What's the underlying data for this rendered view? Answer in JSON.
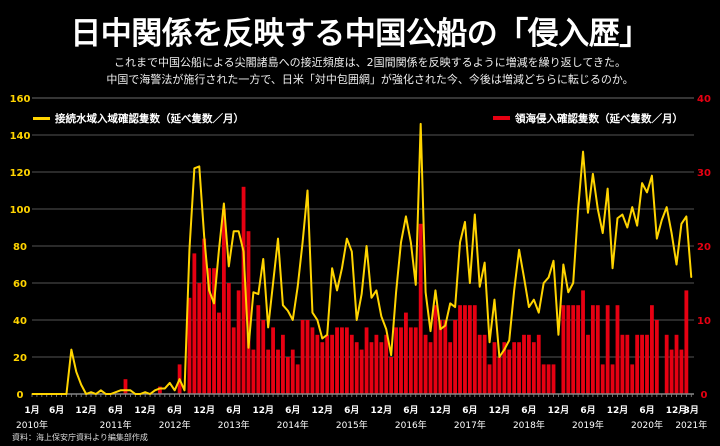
{
  "title": "日中関係を反映する中国公船の「侵入歴」",
  "subtitle_lines": [
    "これまで中国公船による尖閣諸島への接近頻度は、2国間関係を反映するように増減を繰り返してきた。",
    "中国で海警法が施行された一方で、日米「対中包囲網」が強化された今、今後は増減どちらに転じるのか。"
  ],
  "source": "資料：海上保安庁資料より編集部作成",
  "chart_data": {
    "type": "bar+line",
    "start_month": "2010-01",
    "end_month": "2021-03",
    "grid": true,
    "left_axis": {
      "ylim": [
        0,
        160
      ],
      "ticks": [
        0,
        20,
        40,
        60,
        80,
        100,
        120,
        140,
        160
      ],
      "color": "#FFD400"
    },
    "right_axis": {
      "ylim": [
        0,
        40
      ],
      "ticks": [
        0,
        10,
        20,
        30,
        40
      ],
      "color": "#E60012"
    },
    "x_tick_labels": [
      {
        "month": 0,
        "label": "1月",
        "year": "2010年"
      },
      {
        "month": 5,
        "label": "6月"
      },
      {
        "month": 11,
        "label": "12月"
      },
      {
        "month": 17,
        "label": "6月",
        "year": "2011年"
      },
      {
        "month": 23,
        "label": "12月"
      },
      {
        "month": 29,
        "label": "6月",
        "year": "2012年"
      },
      {
        "month": 35,
        "label": "12月"
      },
      {
        "month": 41,
        "label": "6月",
        "year": "2013年"
      },
      {
        "month": 47,
        "label": "12月"
      },
      {
        "month": 53,
        "label": "6月",
        "year": "2014年"
      },
      {
        "month": 59,
        "label": "12月"
      },
      {
        "month": 65,
        "label": "6月",
        "year": "2015年"
      },
      {
        "month": 71,
        "label": "12月"
      },
      {
        "month": 77,
        "label": "6月",
        "year": "2016年"
      },
      {
        "month": 83,
        "label": "12月"
      },
      {
        "month": 89,
        "label": "6月",
        "year": "2017年"
      },
      {
        "month": 95,
        "label": "12月"
      },
      {
        "month": 101,
        "label": "6月",
        "year": "2018年"
      },
      {
        "month": 107,
        "label": "12月"
      },
      {
        "month": 113,
        "label": "6月",
        "year": "2019年"
      },
      {
        "month": 119,
        "label": "12月"
      },
      {
        "month": 125,
        "label": "6月",
        "year": "2020年"
      },
      {
        "month": 131,
        "label": "12月"
      },
      {
        "month": 134,
        "label": "3月",
        "year": "2021年"
      }
    ],
    "series": [
      {
        "name": "接続水域入域確認隻数（延べ隻数／月）",
        "type": "line",
        "axis": "left",
        "color": "#FFD400",
        "values": [
          0,
          0,
          0,
          0,
          0,
          0,
          0,
          0,
          24,
          12,
          5,
          0,
          1,
          0,
          2,
          0,
          0,
          1,
          2,
          2,
          2,
          0,
          0,
          1,
          0,
          2,
          3,
          3,
          6,
          2,
          8,
          2,
          78,
          122,
          123,
          85,
          56,
          49,
          78,
          103,
          69,
          88,
          88,
          77,
          25,
          55,
          54,
          73,
          36,
          60,
          84,
          48,
          45,
          40,
          58,
          82,
          110,
          44,
          40,
          30,
          32,
          68,
          56,
          68,
          84,
          77,
          40,
          54,
          80,
          52,
          56,
          42,
          35,
          21,
          55,
          82,
          96,
          82,
          59,
          146,
          55,
          34,
          56,
          35,
          37,
          49,
          47,
          82,
          93,
          60,
          97,
          58,
          71,
          28,
          51,
          20,
          24,
          29,
          56,
          78,
          63,
          47,
          51,
          44,
          60,
          63,
          72,
          32,
          70,
          55,
          60,
          100,
          131,
          98,
          119,
          100,
          87,
          111,
          68,
          95,
          97,
          90,
          101,
          91,
          114,
          109,
          118,
          84,
          94,
          101,
          87,
          70,
          92,
          96,
          63
        ]
      },
      {
        "name": "領海侵入確認隻数（延べ隻数／月）",
        "type": "bar",
        "axis": "right",
        "color": "#E60012",
        "values": [
          0,
          0,
          0,
          0,
          0,
          0,
          0,
          0,
          0,
          0,
          0,
          0,
          0,
          0,
          0,
          0,
          0,
          0,
          0,
          2,
          0,
          0,
          0,
          0,
          0,
          0,
          1,
          0,
          0,
          0,
          4,
          0,
          13,
          19,
          15,
          21,
          17,
          17,
          11,
          25,
          15,
          9,
          14,
          28,
          22,
          6,
          12,
          10,
          6,
          9,
          6,
          8,
          5,
          6,
          4,
          10,
          10,
          9,
          8,
          7,
          8,
          8,
          9,
          9,
          9,
          8,
          7,
          6,
          9,
          7,
          8,
          7,
          8,
          5,
          9,
          9,
          11,
          9,
          9,
          23,
          8,
          7,
          12,
          10,
          10,
          7,
          10,
          12,
          12,
          12,
          12,
          8,
          8,
          4,
          7,
          5,
          7,
          6,
          7,
          7,
          8,
          8,
          7,
          8,
          4,
          4,
          4,
          0,
          12,
          12,
          12,
          12,
          14,
          8,
          12,
          12,
          4,
          12,
          4,
          12,
          8,
          8,
          4,
          8,
          8,
          8,
          12,
          10,
          0,
          8,
          6,
          8,
          6,
          14,
          0
        ]
      }
    ]
  }
}
